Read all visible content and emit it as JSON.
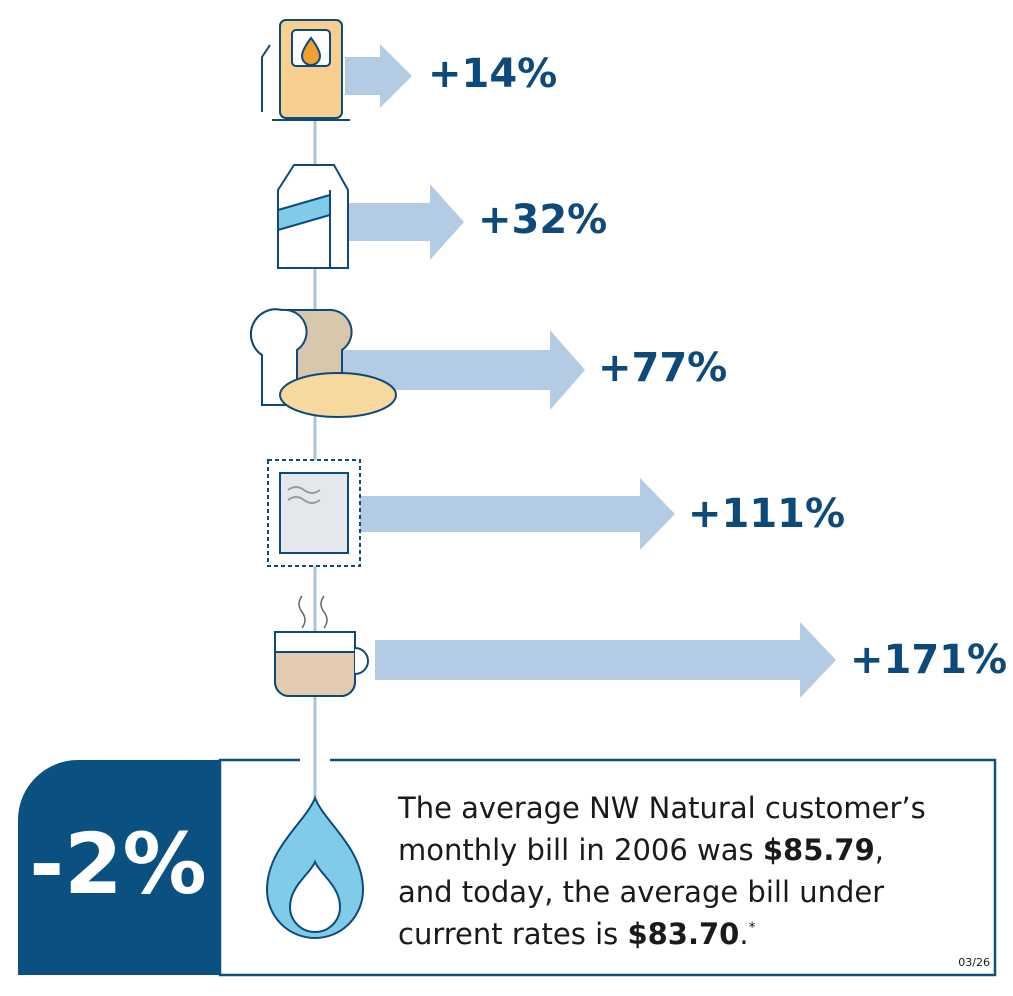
{
  "items": [
    {
      "label": "+14%"
    },
    {
      "label": "+32%"
    },
    {
      "label": "+77%"
    },
    {
      "label": "+111%"
    },
    {
      "label": "+171%"
    }
  ],
  "callout": {
    "value": "-2%",
    "lines": [
      [
        {
          "text": "The average NW Natural customer’s"
        }
      ],
      [
        {
          "text": "monthly bill in 2006 was "
        },
        {
          "text": "$85.79",
          "bold": true
        },
        {
          "text": ","
        }
      ],
      [
        {
          "text": "and today, the average bill under"
        }
      ],
      [
        {
          "text": "current rates is "
        },
        {
          "text": "$83.70",
          "bold": true
        },
        {
          "text": "."
        },
        {
          "text": "*",
          "sup": true
        }
      ]
    ],
    "footnote": "03/26"
  }
}
